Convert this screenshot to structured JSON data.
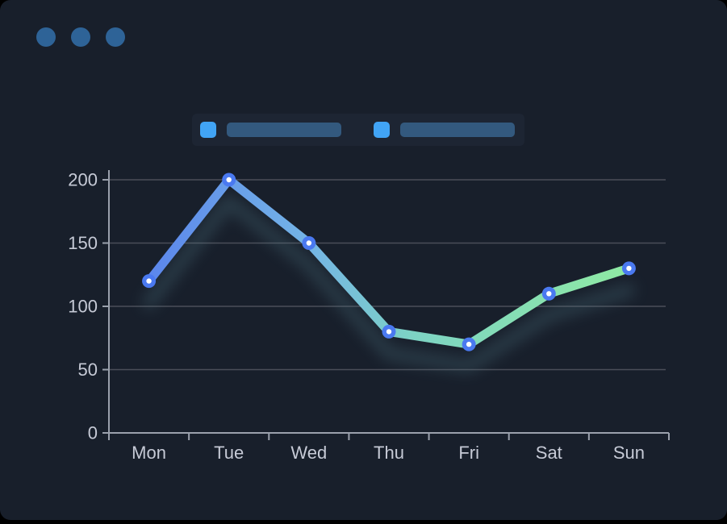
{
  "window": {
    "background": "#181f2b",
    "control_dot_color": "#2e6397",
    "control_dot_count": 3
  },
  "legend": {
    "background": "#1d2533",
    "items": [
      {
        "swatch_color": "#41a4f5",
        "bar_color": "#33597e",
        "label": ""
      },
      {
        "swatch_color": "#41a4f5",
        "bar_color": "#33597e",
        "label": ""
      }
    ]
  },
  "chart_data": {
    "type": "line",
    "categories": [
      "Mon",
      "Tue",
      "Wed",
      "Thu",
      "Fri",
      "Sat",
      "Sun"
    ],
    "values": [
      120,
      200,
      150,
      80,
      70,
      110,
      130
    ],
    "title": "",
    "xlabel": "",
    "ylabel": "",
    "ylim": [
      0,
      200
    ],
    "yticks": [
      0,
      50,
      100,
      150,
      200
    ],
    "grid": true,
    "legend_position": "top",
    "line_gradient_stops": [
      {
        "offset": 0,
        "color": "#5b86ec"
      },
      {
        "offset": 0.33,
        "color": "#74b4e6"
      },
      {
        "offset": 0.55,
        "color": "#7dd3c4"
      },
      {
        "offset": 1,
        "color": "#8feaa3"
      }
    ],
    "line_glow_color": "#56828f",
    "marker_ring_color": "#4a79f0",
    "marker_center_color": "#ffffff",
    "grid_color": "#4a4e59",
    "axis_color": "#9aa0ac",
    "tick_label_color": "#c6cad6"
  }
}
